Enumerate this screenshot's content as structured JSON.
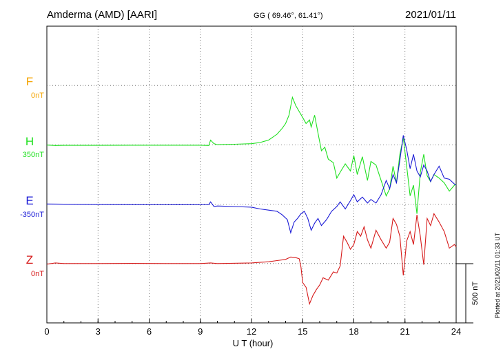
{
  "header": {
    "station": "Amderma (AMD)  [AARI]",
    "coords": "GG ( 69.46°,  61.41°)",
    "date": "2021/01/11"
  },
  "footer": {
    "plotted": "Plotted at 2021/02/11 01:33 UT"
  },
  "chart_data": {
    "type": "line",
    "title": "Amderma (AMD)  [AARI]",
    "xlabel": "U T (hour)",
    "ylabel": "",
    "xlim": [
      0,
      24
    ],
    "xticks": [
      "0",
      "3",
      "6",
      "9",
      "12",
      "15",
      "18",
      "21",
      "24"
    ],
    "grid": true,
    "scale_bar": {
      "label": "500 nT",
      "value_nT": 500
    },
    "y_unit_per_row_nT": 500,
    "colors": {
      "F": "#f5a400",
      "H": "#1fe01f",
      "E": "#1a1ad6",
      "Z": "#d61a1a"
    },
    "series": [
      {
        "name": "F",
        "offset_label": "0nT",
        "row": 1,
        "points": []
      },
      {
        "name": "H",
        "offset_label": "350nT",
        "row": 2,
        "points": [
          [
            0,
            -2
          ],
          [
            0.5,
            -5
          ],
          [
            1,
            -4
          ],
          [
            3,
            -4
          ],
          [
            5,
            -3
          ],
          [
            7,
            -3
          ],
          [
            9,
            -3
          ],
          [
            9.5,
            -5
          ],
          [
            9.6,
            40
          ],
          [
            9.8,
            10
          ],
          [
            10,
            2
          ],
          [
            11,
            5
          ],
          [
            12,
            10
          ],
          [
            12.5,
            20
          ],
          [
            13,
            40
          ],
          [
            13.5,
            90
          ],
          [
            13.8,
            140
          ],
          [
            14,
            180
          ],
          [
            14.2,
            250
          ],
          [
            14.4,
            400
          ],
          [
            14.6,
            330
          ],
          [
            14.8,
            280
          ],
          [
            15,
            230
          ],
          [
            15.2,
            180
          ],
          [
            15.4,
            210
          ],
          [
            15.5,
            150
          ],
          [
            15.7,
            250
          ],
          [
            15.9,
            100
          ],
          [
            16.1,
            -50
          ],
          [
            16.3,
            -20
          ],
          [
            16.5,
            -120
          ],
          [
            16.8,
            -150
          ],
          [
            17,
            -280
          ],
          [
            17.2,
            -230
          ],
          [
            17.5,
            -160
          ],
          [
            17.8,
            -220
          ],
          [
            18,
            -90
          ],
          [
            18.2,
            -250
          ],
          [
            18.5,
            -100
          ],
          [
            18.8,
            -300
          ],
          [
            19,
            -140
          ],
          [
            19.3,
            -170
          ],
          [
            19.6,
            -300
          ],
          [
            19.9,
            -430
          ],
          [
            20.1,
            -370
          ],
          [
            20.3,
            -180
          ],
          [
            20.5,
            -320
          ],
          [
            20.7,
            -80
          ],
          [
            20.9,
            60
          ],
          [
            21.1,
            -180
          ],
          [
            21.3,
            -430
          ],
          [
            21.5,
            -340
          ],
          [
            21.7,
            -580
          ],
          [
            21.9,
            -230
          ],
          [
            22.1,
            -80
          ],
          [
            22.3,
            -260
          ],
          [
            22.5,
            -310
          ],
          [
            22.7,
            -250
          ],
          [
            23,
            -280
          ],
          [
            23.3,
            -320
          ],
          [
            23.6,
            -390
          ],
          [
            23.9,
            -340
          ],
          [
            24,
            -330
          ]
        ]
      },
      {
        "name": "E",
        "offset_label": "-350nT",
        "row": 3,
        "points": [
          [
            0,
            2
          ],
          [
            1,
            0
          ],
          [
            3,
            -3
          ],
          [
            5,
            -4
          ],
          [
            7,
            -5
          ],
          [
            9.5,
            -4
          ],
          [
            9.6,
            20
          ],
          [
            9.8,
            -20
          ],
          [
            10,
            -15
          ],
          [
            11,
            -20
          ],
          [
            12,
            -25
          ],
          [
            12.5,
            -40
          ],
          [
            13,
            -50
          ],
          [
            13.5,
            -60
          ],
          [
            13.8,
            -90
          ],
          [
            14.1,
            -130
          ],
          [
            14.3,
            -240
          ],
          [
            14.5,
            -150
          ],
          [
            14.7,
            -120
          ],
          [
            14.9,
            -80
          ],
          [
            15.1,
            -60
          ],
          [
            15.3,
            -120
          ],
          [
            15.5,
            -220
          ],
          [
            15.7,
            -160
          ],
          [
            15.9,
            -120
          ],
          [
            16.1,
            -180
          ],
          [
            16.4,
            -130
          ],
          [
            16.7,
            -60
          ],
          [
            17,
            -20
          ],
          [
            17.2,
            20
          ],
          [
            17.5,
            -40
          ],
          [
            17.8,
            30
          ],
          [
            18,
            80
          ],
          [
            18.2,
            20
          ],
          [
            18.5,
            60
          ],
          [
            18.8,
            10
          ],
          [
            19,
            40
          ],
          [
            19.3,
            10
          ],
          [
            19.6,
            80
          ],
          [
            19.9,
            200
          ],
          [
            20.1,
            130
          ],
          [
            20.3,
            250
          ],
          [
            20.5,
            180
          ],
          [
            20.7,
            370
          ],
          [
            20.9,
            580
          ],
          [
            21.1,
            460
          ],
          [
            21.3,
            300
          ],
          [
            21.5,
            420
          ],
          [
            21.7,
            280
          ],
          [
            21.9,
            230
          ],
          [
            22.1,
            330
          ],
          [
            22.3,
            280
          ],
          [
            22.5,
            190
          ],
          [
            22.7,
            250
          ],
          [
            23,
            320
          ],
          [
            23.3,
            220
          ],
          [
            23.6,
            210
          ],
          [
            23.9,
            170
          ],
          [
            24,
            160
          ]
        ]
      },
      {
        "name": "Z",
        "offset_label": "0nT",
        "row": 4,
        "points": [
          [
            0,
            -5
          ],
          [
            0.5,
            5
          ],
          [
            1,
            0
          ],
          [
            3,
            0
          ],
          [
            5,
            1
          ],
          [
            7,
            0
          ],
          [
            9,
            0
          ],
          [
            9.6,
            5
          ],
          [
            10,
            0
          ],
          [
            12,
            5
          ],
          [
            13,
            15
          ],
          [
            13.5,
            25
          ],
          [
            14,
            35
          ],
          [
            14.3,
            55
          ],
          [
            14.6,
            50
          ],
          [
            14.8,
            40
          ],
          [
            14.9,
            -30
          ],
          [
            15,
            -160
          ],
          [
            15.2,
            -200
          ],
          [
            15.4,
            -340
          ],
          [
            15.6,
            -270
          ],
          [
            15.8,
            -220
          ],
          [
            16,
            -180
          ],
          [
            16.2,
            -120
          ],
          [
            16.5,
            -140
          ],
          [
            16.8,
            -70
          ],
          [
            17,
            -80
          ],
          [
            17.2,
            -20
          ],
          [
            17.4,
            230
          ],
          [
            17.6,
            180
          ],
          [
            17.8,
            120
          ],
          [
            18,
            160
          ],
          [
            18.2,
            270
          ],
          [
            18.4,
            230
          ],
          [
            18.6,
            310
          ],
          [
            18.8,
            200
          ],
          [
            19,
            130
          ],
          [
            19.3,
            280
          ],
          [
            19.6,
            200
          ],
          [
            19.9,
            130
          ],
          [
            20.1,
            180
          ],
          [
            20.3,
            380
          ],
          [
            20.5,
            330
          ],
          [
            20.7,
            230
          ],
          [
            20.9,
            -100
          ],
          [
            21.1,
            190
          ],
          [
            21.3,
            270
          ],
          [
            21.5,
            160
          ],
          [
            21.7,
            410
          ],
          [
            21.9,
            230
          ],
          [
            22.1,
            -10
          ],
          [
            22.3,
            380
          ],
          [
            22.5,
            320
          ],
          [
            22.7,
            420
          ],
          [
            23,
            350
          ],
          [
            23.3,
            270
          ],
          [
            23.6,
            130
          ],
          [
            23.9,
            160
          ],
          [
            24,
            140
          ]
        ]
      }
    ]
  }
}
